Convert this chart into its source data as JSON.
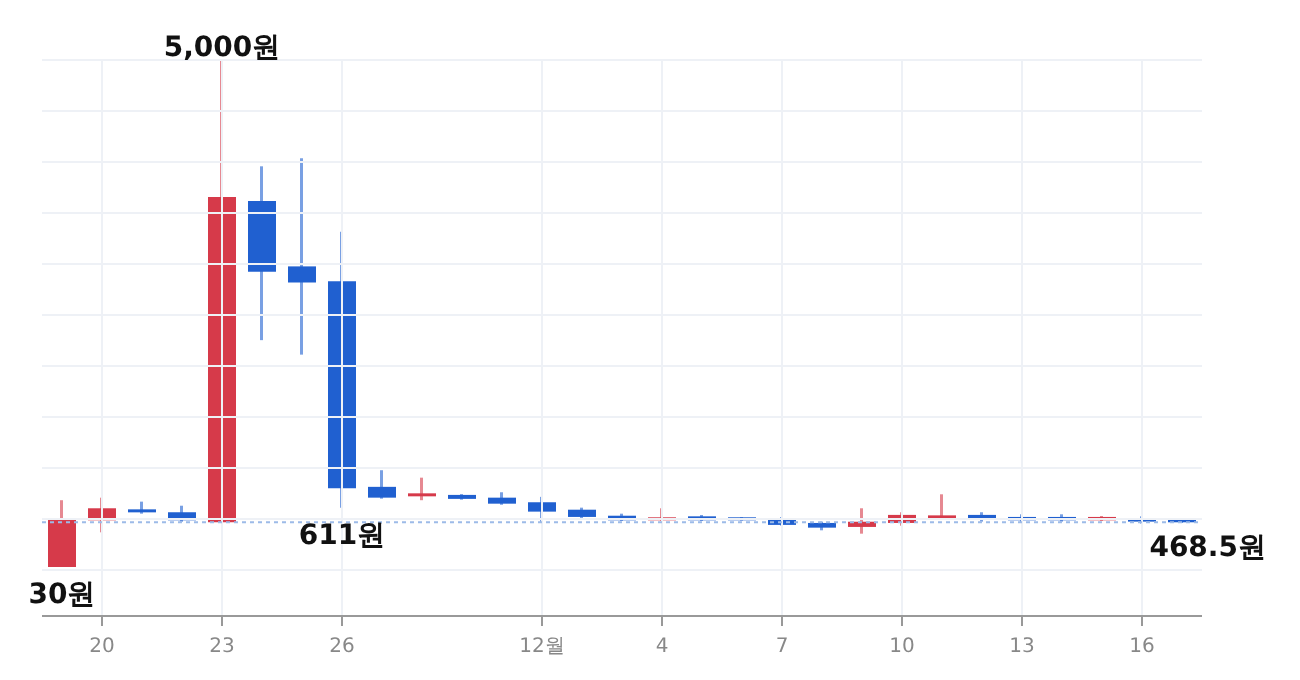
{
  "chart_data": {
    "type": "candlestick",
    "categories": [
      null,
      "20",
      null,
      null,
      "23",
      null,
      null,
      "26",
      null,
      null,
      null,
      null,
      "12월",
      null,
      null,
      "4",
      null,
      null,
      "7",
      null,
      null,
      "10",
      null,
      null,
      "13",
      null,
      null,
      "16",
      null
    ],
    "ohlc": [
      [
        30,
        685,
        30,
        502
      ],
      [
        488,
        710,
        370,
        606
      ],
      [
        592,
        671,
        553,
        566
      ],
      [
        567,
        631,
        474,
        488
      ],
      [
        470,
        5000,
        468,
        3656
      ],
      [
        3617,
        3958,
        2254,
        2924
      ],
      [
        2977,
        4037,
        2112,
        2819
      ],
      [
        2831,
        3316,
        611,
        802
      ],
      [
        816,
        979,
        700,
        710
      ],
      [
        723,
        906,
        685,
        751
      ],
      [
        737,
        745,
        690,
        698
      ],
      [
        710,
        763,
        640,
        651
      ],
      [
        665,
        718,
        468,
        573
      ],
      [
        592,
        612,
        510,
        521
      ],
      [
        533,
        553,
        482,
        488
      ],
      [
        488,
        606,
        482,
        514
      ],
      [
        527,
        540,
        482,
        488
      ],
      [
        514,
        520,
        485,
        488
      ],
      [
        501,
        520,
        436,
        443
      ],
      [
        462,
        475,
        390,
        416
      ],
      [
        423,
        606,
        357,
        474
      ],
      [
        462,
        567,
        435,
        541
      ],
      [
        507,
        743,
        507,
        533
      ],
      [
        541,
        567,
        475,
        494
      ],
      [
        521,
        547,
        468,
        488
      ],
      [
        521,
        547,
        475,
        488
      ],
      [
        488,
        530,
        482,
        521
      ],
      [
        508,
        527,
        455,
        475
      ],
      [
        488,
        492,
        462,
        468.5
      ]
    ],
    "colors": [
      "#d63a4a",
      "#d63a4a",
      "#2060d0",
      "#2060d0",
      "#d63a4a",
      "#2060d0",
      "#2060d0",
      "#2060d0",
      "#2060d0",
      "#d63a4a",
      "#2060d0",
      "#2060d0",
      "#2060d0",
      "#2060d0",
      "#2060d0",
      "#d63a4a",
      "#2060d0",
      "#2060d0",
      "#2060d0",
      "#2060d0",
      "#d63a4a",
      "#d63a4a",
      "#d63a4a",
      "#2060d0",
      "#2060d0",
      "#2060d0",
      "#d63a4a",
      "#2060d0",
      "#2060d0"
    ],
    "ylim": [
      -450,
      5000
    ],
    "yticks": [
      {
        "value": 0,
        "label": null
      },
      {
        "value": 500,
        "label": null
      },
      {
        "value": 1000,
        "label": null
      },
      {
        "value": 1500,
        "label": null
      },
      {
        "value": 2000,
        "label": null
      },
      {
        "value": 2500,
        "label": null
      },
      {
        "value": 3000,
        "label": null
      },
      {
        "value": 3500,
        "label": null
      },
      {
        "value": 4000,
        "label": null
      },
      {
        "value": 4500,
        "label": null
      },
      {
        "value": 5000,
        "label": null
      }
    ],
    "tick_labels": "x",
    "grid": true,
    "ref_lines": [
      {
        "axis": "y",
        "value": 468.5,
        "label": "468.5원",
        "color": "#9dbbe8",
        "line_style": "dotted"
      }
    ],
    "annotations": [
      {
        "text": "5,000원",
        "x": "23",
        "y": 5000
      },
      {
        "text": "611원",
        "x": "26",
        "y": 611
      },
      {
        "text": "30원",
        "y": 30
      }
    ]
  }
}
